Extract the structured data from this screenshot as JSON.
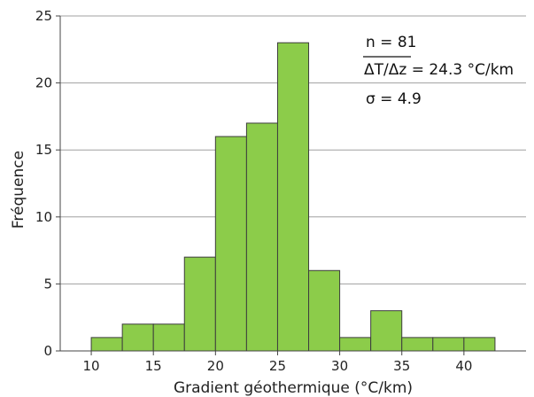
{
  "chart_data": {
    "type": "bar",
    "bin_edges": [
      10,
      12.5,
      15,
      17.5,
      20,
      22.5,
      25,
      27.5,
      30,
      32.5,
      35,
      37.5,
      40,
      42.5
    ],
    "values": [
      1,
      2,
      2,
      7,
      16,
      17,
      23,
      6,
      1,
      3,
      1,
      1,
      1
    ],
    "xlabel": "Gradient géothermique (°C/km)",
    "ylabel": "Fréquence",
    "xlim": [
      7.5,
      45
    ],
    "ylim": [
      0,
      25
    ],
    "xticks": [
      10,
      15,
      20,
      25,
      30,
      35,
      40
    ],
    "yticks": [
      0,
      5,
      10,
      15,
      20,
      25
    ],
    "grid": {
      "horizontal": true,
      "vertical": false
    },
    "annotations": [
      "n = 81",
      "ΔT/Δz = 24.3 °C/km",
      "σ = 4.9"
    ],
    "colors": {
      "bar_fill": "#8ccc4a",
      "bar_stroke": "#3d3d3d",
      "grid": "#a0a0a0",
      "axis": "#444444"
    }
  }
}
